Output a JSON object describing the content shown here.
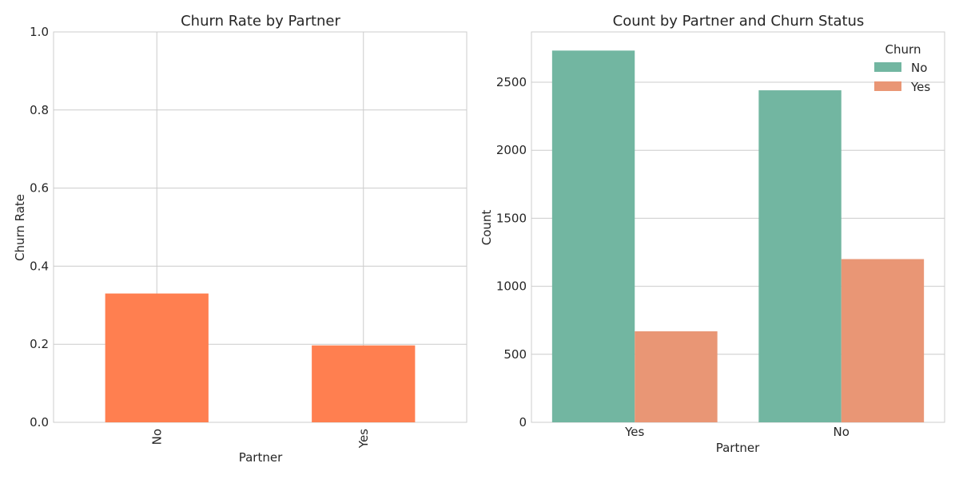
{
  "chart_data": [
    {
      "type": "bar",
      "title": "Churn Rate by Partner",
      "xlabel": "Partner",
      "ylabel": "Churn Rate",
      "categories": [
        "No",
        "Yes"
      ],
      "values": [
        0.33,
        0.197
      ],
      "ylim": [
        0,
        1
      ],
      "yticks": [
        "0.0",
        "0.2",
        "0.4",
        "0.6",
        "0.8",
        "1.0"
      ],
      "color": "#ff7f50",
      "grid": true,
      "xtick_rotation": "vertical"
    },
    {
      "type": "bar",
      "title": "Count by Partner and Churn Status",
      "xlabel": "Partner",
      "ylabel": "Count",
      "categories": [
        "Yes",
        "No"
      ],
      "series": [
        {
          "name": "No",
          "values": [
            2733,
            2441
          ],
          "color": "#72b6a1"
        },
        {
          "name": "Yes",
          "values": [
            669,
            1200
          ],
          "color": "#e99675"
        }
      ],
      "ylim": [
        0,
        2870
      ],
      "yticks": [
        "0",
        "500",
        "1000",
        "1500",
        "2000",
        "2500"
      ],
      "legend": {
        "title": "Churn",
        "placement": "top-right"
      },
      "grid": true
    }
  ]
}
